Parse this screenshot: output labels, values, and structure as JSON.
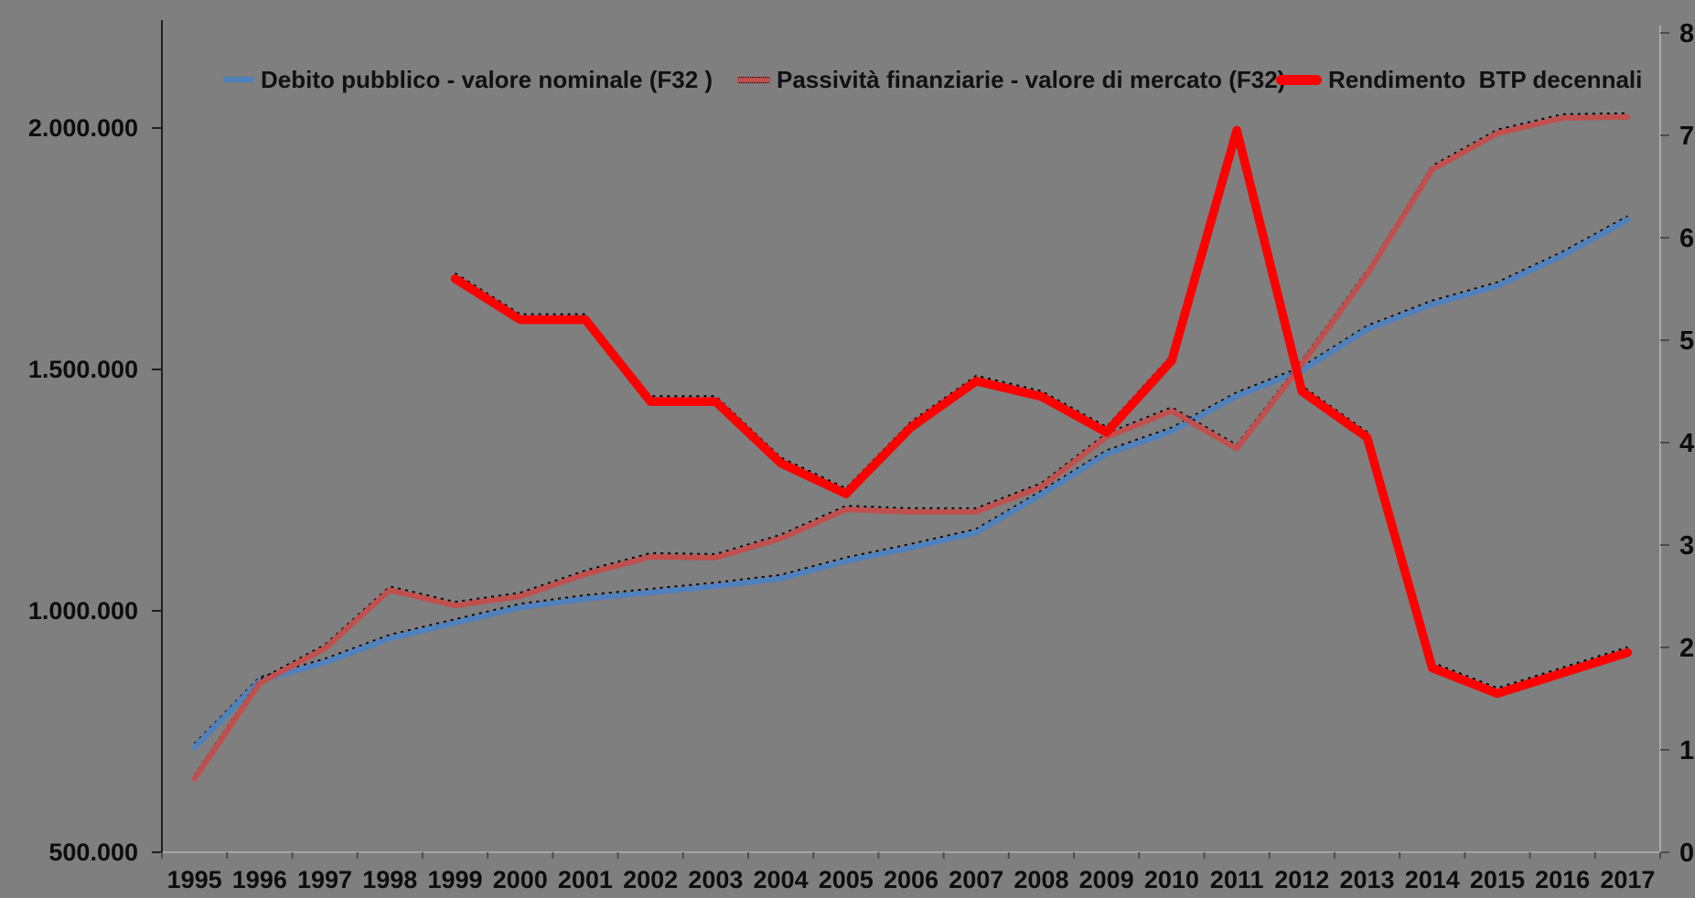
{
  "chart_data": {
    "type": "line",
    "title": "",
    "background_color": "#7f7f7f",
    "grid": false,
    "legend_position": "top",
    "categories": [
      "1995",
      "1996",
      "1997",
      "1998",
      "1999",
      "2000",
      "2001",
      "2002",
      "2003",
      "2004",
      "2005",
      "2006",
      "2007",
      "2008",
      "2009",
      "2010",
      "2011",
      "2012",
      "2013",
      "2014",
      "2015",
      "2016",
      "2017"
    ],
    "left_axis": {
      "tick_labels": [
        "500.000",
        "1.000.000",
        "1.500.000",
        "2.000.000"
      ],
      "tick_values": [
        500000,
        1000000,
        1500000,
        2000000
      ],
      "min": 500000,
      "max": 2210000
    },
    "right_axis": {
      "tick_labels": [
        "0",
        "1",
        "2",
        "3",
        "4",
        "5",
        "6",
        "7",
        "8"
      ],
      "tick_values": [
        0,
        1,
        2,
        3,
        4,
        5,
        6,
        7,
        8
      ],
      "min": 0,
      "max": 8
    },
    "series": [
      {
        "name": "Debito pubblico - valore nominale (F32 )",
        "axis": "left",
        "color": "#4f81bd",
        "style": "normal",
        "values": [
          717000,
          855000,
          893000,
          943000,
          975000,
          1007000,
          1025000,
          1038000,
          1051000,
          1067000,
          1103000,
          1131000,
          1162000,
          1241000,
          1325000,
          1372000,
          1445000,
          1498000,
          1583000,
          1635000,
          1673000,
          1736000,
          1810000
        ]
      },
      {
        "name": "Passività finanziarie - valore di mercato (F32)",
        "axis": "left",
        "color": "#c0504d",
        "style": "normal",
        "values": [
          652000,
          850000,
          922000,
          1043000,
          1011000,
          1030000,
          1076000,
          1112000,
          1110000,
          1150000,
          1210000,
          1205000,
          1205000,
          1257000,
          1360000,
          1414000,
          1336000,
          1511000,
          1697000,
          1914000,
          1989000,
          2021000,
          2023000
        ]
      },
      {
        "name": "Rendimento  BTP decennali",
        "axis": "right",
        "color": "#ff0000",
        "style": "thick",
        "values": [
          null,
          null,
          null,
          null,
          5.6,
          5.2,
          5.2,
          4.4,
          4.4,
          3.8,
          3.5,
          4.15,
          4.6,
          4.45,
          4.1,
          4.8,
          7.05,
          4.5,
          4.05,
          1.8,
          1.55,
          1.75,
          1.95
        ]
      }
    ]
  },
  "colors": {
    "background": "#7f7f7f",
    "left_axis_line": "#1f1f1f",
    "bottom_axis_line": "#a6a6a6",
    "right_axis_line": "#ababab",
    "tick": "#4d4d4d",
    "text": "#0d0d0d",
    "shadow_dots": "#000000"
  }
}
